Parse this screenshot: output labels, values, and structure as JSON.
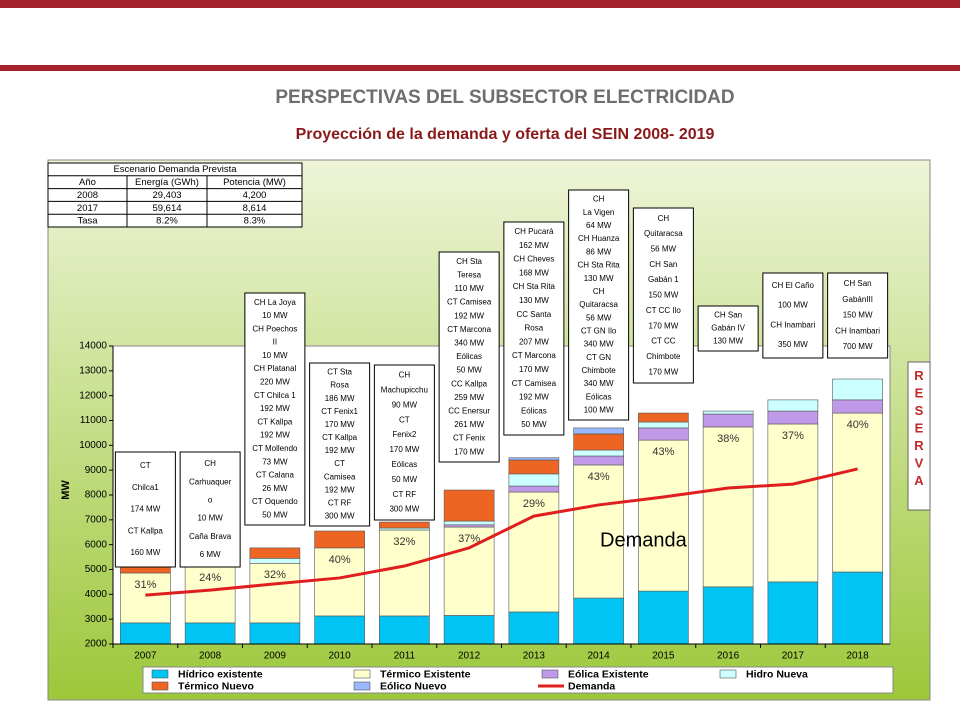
{
  "header": {
    "title": "PERSPECTIVAS DEL SUBSECTOR ELECTRICIDAD",
    "subtitle": "Proyección  de la demanda y oferta del SEIN 2008- 2019"
  },
  "table": {
    "title": "Escenario Demanda Prevista",
    "header": [
      "Año",
      "Energía (GWh)",
      "Potencia (MW)"
    ],
    "rows": [
      [
        "2008",
        "29,403",
        "4,200"
      ],
      [
        "2017",
        "59,614",
        "8,614"
      ],
      [
        "Tasa",
        "8.2%",
        "8.3%"
      ]
    ]
  },
  "chart_data": {
    "type": "bar",
    "y_label": "MW",
    "categories": [
      "2007",
      "2008",
      "2009",
      "2010",
      "2011",
      "2012",
      "2013",
      "2014",
      "2015",
      "2016",
      "2017",
      "2018"
    ],
    "ylim": [
      2000,
      14000
    ],
    "yticks": [
      2000,
      3000,
      4000,
      5000,
      6000,
      7000,
      8000,
      9000,
      10000,
      11000,
      12000,
      13000,
      14000
    ],
    "series": [
      {
        "name": "Hídrico existente",
        "color": "#00c4f4",
        "values": [
          2850,
          2850,
          2850,
          3130,
          3130,
          3150,
          3290,
          3850,
          4130,
          4300,
          4500,
          4900
        ]
      },
      {
        "name": "Térmico Existente",
        "color": "#ffffcc",
        "values": [
          2010,
          2290,
          2400,
          2740,
          3460,
          3560,
          4830,
          5360,
          6080,
          6440,
          6360,
          6400
        ]
      },
      {
        "name": "Eólica Existente",
        "color": "#c09ae8",
        "values": [
          0,
          0,
          0,
          0,
          0,
          90,
          240,
          360,
          490,
          520,
          520,
          530
        ]
      },
      {
        "name": "Hidro Nueva",
        "color": "#ccffff",
        "values": [
          0,
          0,
          200,
          0,
          80,
          150,
          490,
          240,
          240,
          120,
          450,
          840
        ]
      },
      {
        "name": "Térmico Nuevo",
        "color": "#ee6422",
        "values": [
          320,
          70,
          420,
          680,
          240,
          1250,
          560,
          650,
          360,
          0,
          0,
          0
        ]
      },
      {
        "name": "Eólico Nuevo",
        "color": "#99b8ff",
        "values": [
          0,
          0,
          0,
          0,
          0,
          0,
          90,
          240,
          0,
          0,
          0,
          0
        ]
      },
      {
        "name": "Demanda",
        "type": "line",
        "color": "#e01e1e",
        "values": [
          3970,
          4170,
          4420,
          4660,
          5140,
          5870,
          7150,
          7600,
          7920,
          8280,
          8440,
          9050
        ]
      }
    ],
    "reserve_labels": [
      "31%",
      "24%",
      "32%",
      "40%",
      "32%",
      "37%",
      "29%",
      "43%",
      "43%",
      "38%",
      "37%",
      "40%"
    ],
    "line_annotation": "Demanda",
    "reserve_label": "RESERVA",
    "annotations": [
      [
        "CT",
        "Chilca1",
        "174 MW",
        "CT Kallpa",
        "160 MW"
      ],
      [
        "CH",
        "Carhuaquer",
        "o",
        "10 MW",
        "Caña Brava",
        "6 MW"
      ],
      [
        "CH La Joya",
        "10 MW",
        "CH Poechos",
        "II",
        "10 MW",
        "CH Platanal",
        "220 MW",
        "CT Chilca 1",
        "192 MW",
        "CT Kallpa",
        "192 MW",
        "CT Mollendo",
        "73 MW",
        "CT Calana",
        "26 MW",
        "CT Oquendo",
        "50 MW"
      ],
      [
        "CT Sta",
        "Rosa",
        "186 MW",
        "CT Fenix1",
        "170 MW",
        "CT Kallpa",
        "192 MW",
        "CT",
        "Camisea",
        "192 MW",
        "CT RF",
        "300 MW"
      ],
      [
        "CH",
        "Machupicchu",
        "90 MW",
        "CT",
        "Fenix2",
        "170 MW",
        "Eólicas",
        "50 MW",
        "CT RF",
        "300 MW"
      ],
      [
        "CH Sta",
        "Teresa",
        "110 MW",
        "CT Camisea",
        "192 MW",
        "CT Marcona",
        "340 MW",
        "Eólicas",
        "50 MW",
        "CC Kallpa",
        "259 MW",
        "CC Enersur",
        "261 MW",
        "CT Fenix",
        "170 MW"
      ],
      [
        "CH Pucará",
        "162 MW",
        "CH Cheves",
        "168 MW",
        "CH Sta Rita",
        "130 MW",
        "CC Santa",
        "Rosa",
        "207 MW",
        "CT Marcona",
        "170 MW",
        "CT Camisea",
        "192 MW",
        "Eólicas",
        "50 MW"
      ],
      [
        "CH",
        "La Vigen",
        "64 MW",
        "CH Huanza",
        "86 MW",
        "CH Sta Rita",
        "130 MW",
        "CH",
        "Quitaracsa",
        "56 MW",
        "CT GN  Ilo",
        "340 MW",
        "CT GN",
        "Chimbote",
        "340 MW",
        "Eólicas",
        "100 MW"
      ],
      [
        "CH",
        "Quitaracsa",
        "56 MW",
        "CH San",
        "Gabán 1",
        "150 MW",
        "CT CC Ilo",
        "170 MW",
        "CT CC",
        "Chimbote",
        "170 MW"
      ],
      [
        "CH San",
        "Gabán IV",
        "130 MW"
      ],
      [
        "CH El Caño",
        "100 MW",
        "CH Inambari",
        "350 MW"
      ],
      [
        "CH San",
        "GabánIII",
        "150 MW",
        "CH Inambari",
        "700 MW"
      ]
    ]
  }
}
